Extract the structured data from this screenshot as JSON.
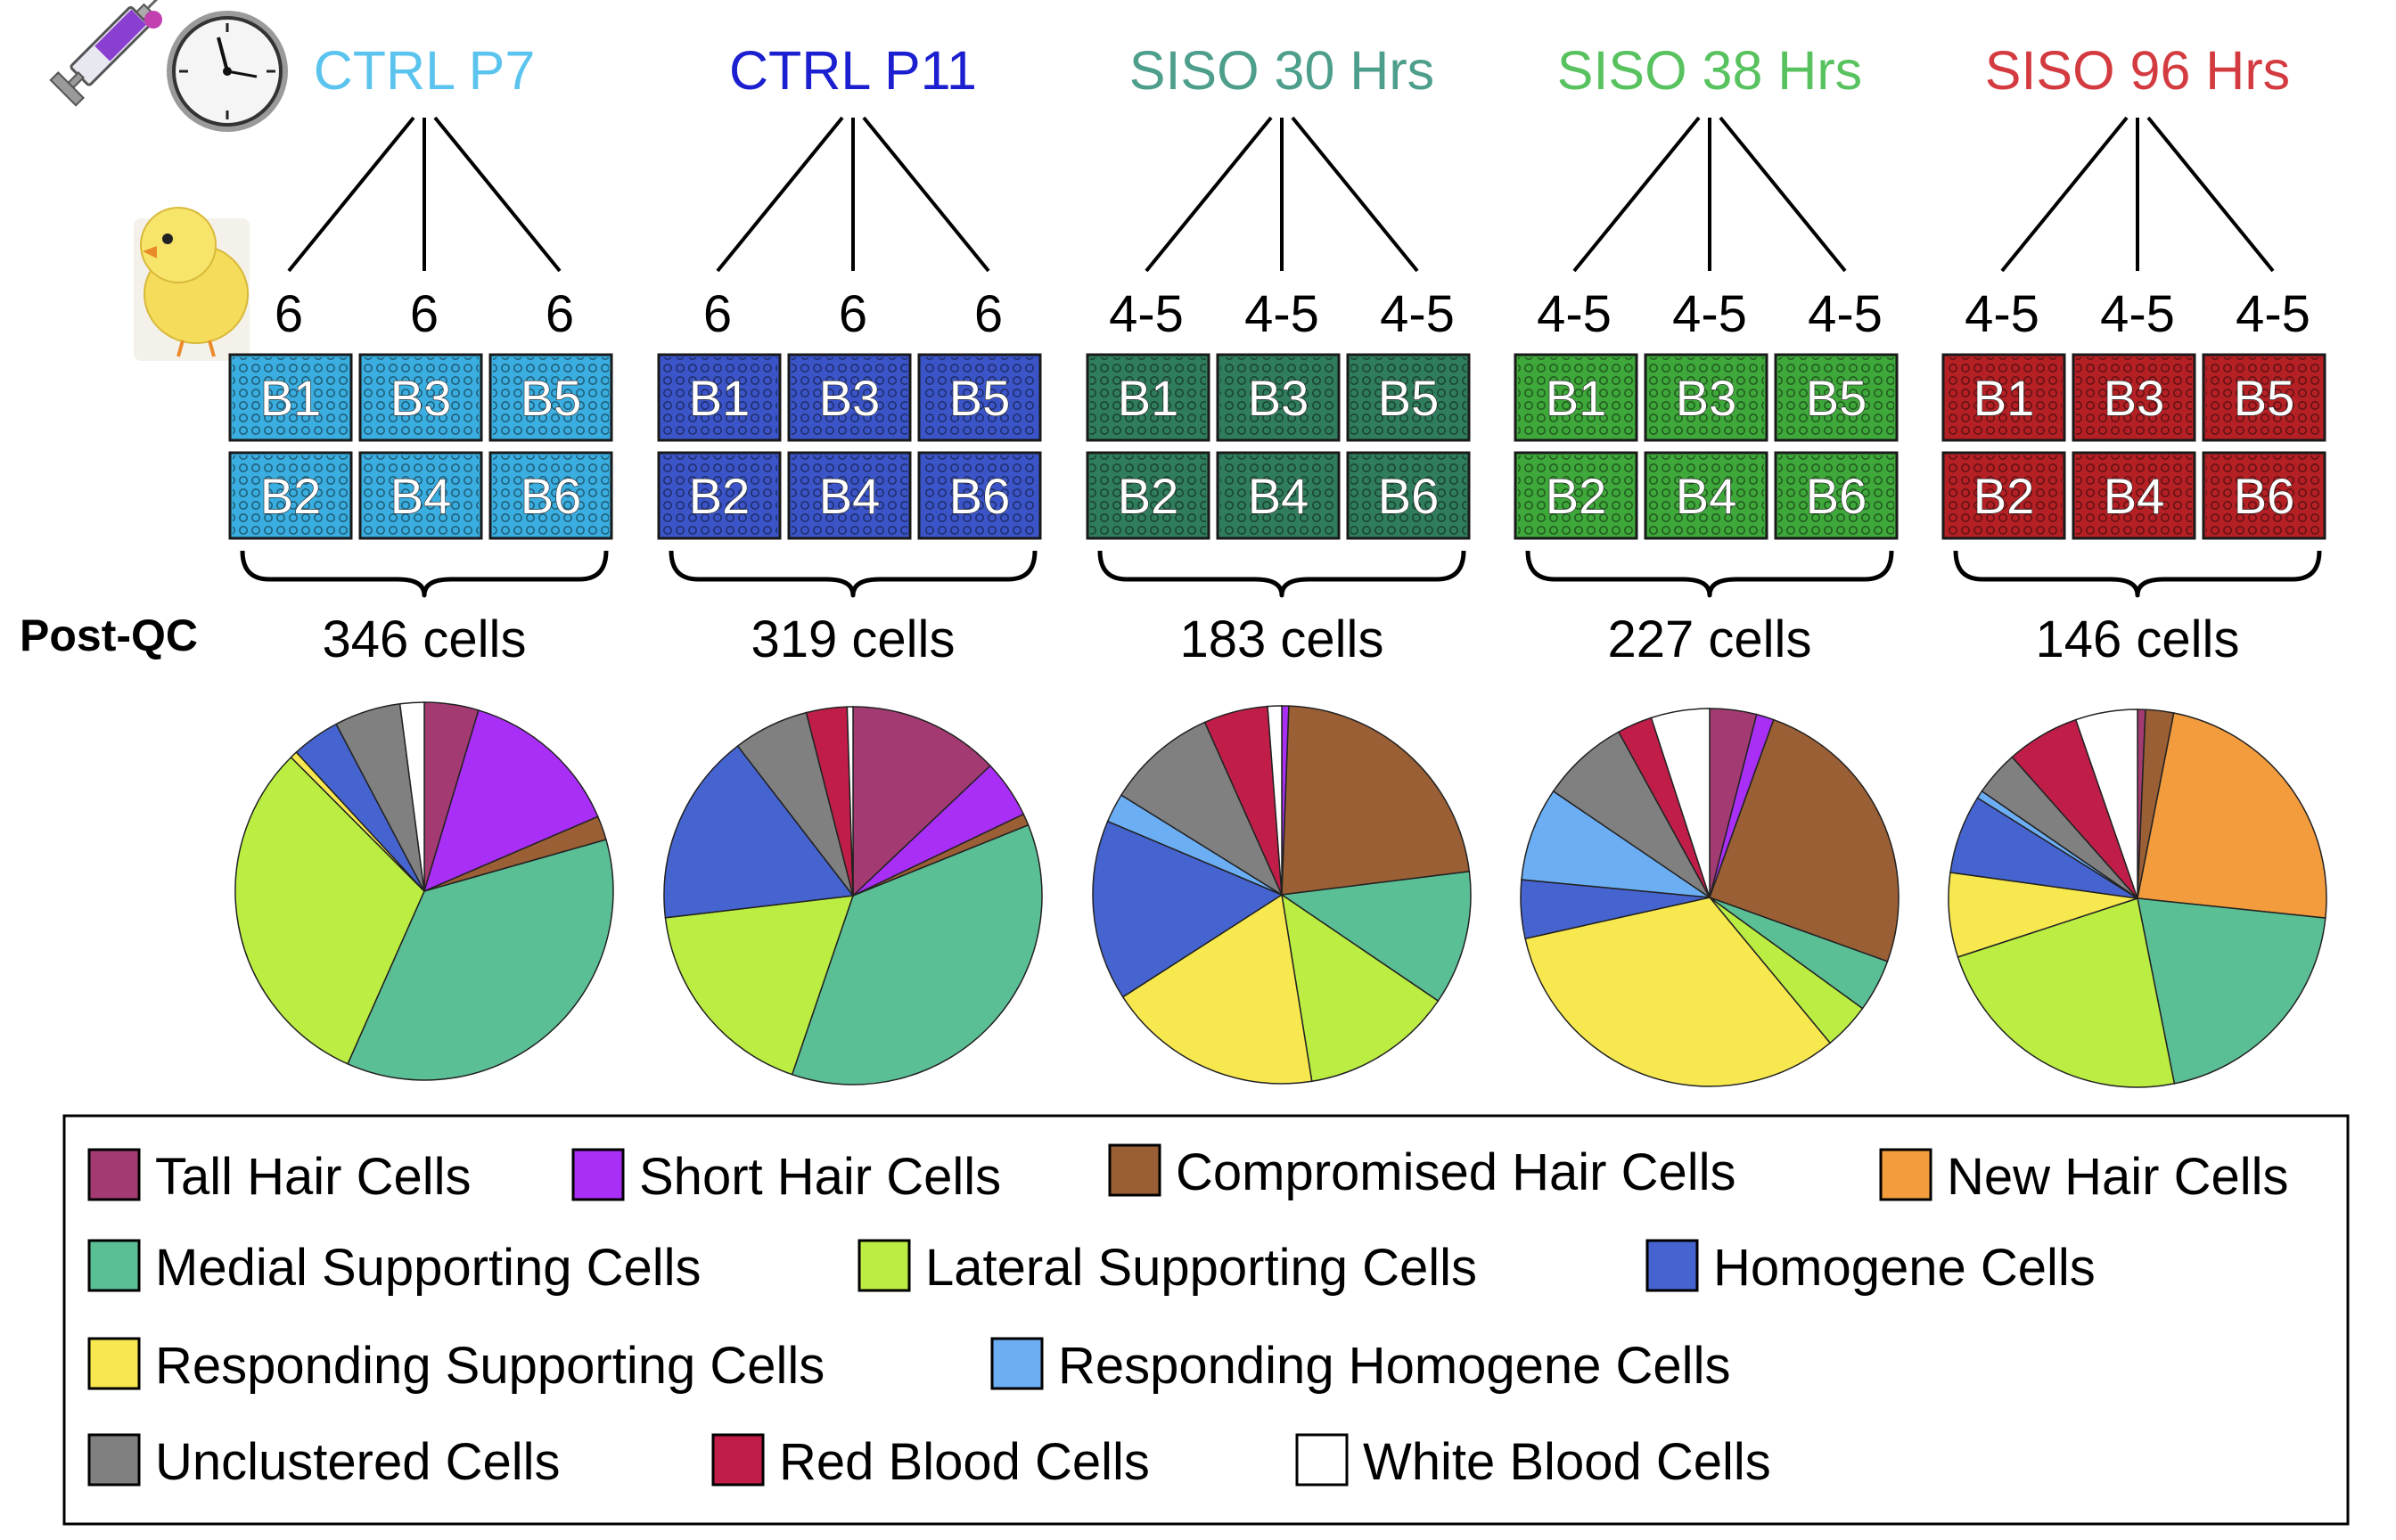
{
  "postqc_label": "Post-QC",
  "groups": [
    {
      "title": "CTRL P7",
      "color": "#5bc4ee",
      "batch_fill": "#3aaee0",
      "replicate_counts": [
        "6",
        "6",
        "6"
      ],
      "batches": [
        "B1",
        "B3",
        "B5",
        "B2",
        "B4",
        "B6"
      ],
      "cells_label": "346 cells"
    },
    {
      "title": "CTRL P11",
      "color": "#1b1fcf",
      "batch_fill": "#3b55c9",
      "replicate_counts": [
        "6",
        "6",
        "6"
      ],
      "batches": [
        "B1",
        "B3",
        "B5",
        "B2",
        "B4",
        "B6"
      ],
      "cells_label": "319 cells"
    },
    {
      "title": "SISO 30 Hrs",
      "color": "#4e9e8c",
      "batch_fill": "#2f7d5c",
      "replicate_counts": [
        "4-5",
        "4-5",
        "4-5"
      ],
      "batches": [
        "B1",
        "B3",
        "B5",
        "B2",
        "B4",
        "B6"
      ],
      "cells_label": "183 cells"
    },
    {
      "title": "SISO 38 Hrs",
      "color": "#58c25f",
      "batch_fill": "#3ea83a",
      "replicate_counts": [
        "4-5",
        "4-5",
        "4-5"
      ],
      "batches": [
        "B1",
        "B3",
        "B5",
        "B2",
        "B4",
        "B6"
      ],
      "cells_label": "227 cells"
    },
    {
      "title": "SISO 96 Hrs",
      "color": "#d33b40",
      "batch_fill": "#b52025",
      "replicate_counts": [
        "4-5",
        "4-5",
        "4-5"
      ],
      "batches": [
        "B1",
        "B3",
        "B5",
        "B2",
        "B4",
        "B6"
      ],
      "cells_label": "146 cells"
    }
  ],
  "chart_data": [
    {
      "type": "pie",
      "group": "CTRL P7",
      "slices": [
        {
          "label": "Tall Hair Cells",
          "value": 4.5
        },
        {
          "label": "Short Hair Cells",
          "value": 13.5
        },
        {
          "label": "Compromised Hair Cells",
          "value": 2.0
        },
        {
          "label": "Medial Supporting Cells",
          "value": 35.0
        },
        {
          "label": "Lateral Supporting Cells",
          "value": 30.0
        },
        {
          "label": "Responding Supporting Cells",
          "value": 0.6
        },
        {
          "label": "Homogene Cells",
          "value": 4.0
        },
        {
          "label": "Unclustered Cells",
          "value": 5.5
        },
        {
          "label": "White Blood Cells",
          "value": 2.0
        }
      ]
    },
    {
      "type": "pie",
      "group": "CTRL P11",
      "slices": [
        {
          "label": "Tall Hair Cells",
          "value": 13.0
        },
        {
          "label": "Short Hair Cells",
          "value": 5.0
        },
        {
          "label": "Compromised Hair Cells",
          "value": 1.0
        },
        {
          "label": "Medial Supporting Cells",
          "value": 36.5
        },
        {
          "label": "Lateral Supporting Cells",
          "value": 18.0
        },
        {
          "label": "Homogene Cells",
          "value": 16.5
        },
        {
          "label": "Unclustered Cells",
          "value": 6.5
        },
        {
          "label": "Red Blood Cells",
          "value": 3.5
        },
        {
          "label": "White Blood Cells",
          "value": 0.5
        }
      ]
    },
    {
      "type": "pie",
      "group": "SISO 30 Hrs",
      "slices": [
        {
          "label": "Short Hair Cells",
          "value": 0.6
        },
        {
          "label": "Compromised Hair Cells",
          "value": 22.5
        },
        {
          "label": "Medial Supporting Cells",
          "value": 11.5
        },
        {
          "label": "Lateral Supporting Cells",
          "value": 13.0
        },
        {
          "label": "Responding Supporting Cells",
          "value": 18.5
        },
        {
          "label": "Homogene Cells",
          "value": 15.5
        },
        {
          "label": "Responding Homogene Cells",
          "value": 2.5
        },
        {
          "label": "Unclustered Cells",
          "value": 9.5
        },
        {
          "label": "Red Blood Cells",
          "value": 5.5
        },
        {
          "label": "White Blood Cells",
          "value": 1.2
        }
      ]
    },
    {
      "type": "pie",
      "group": "SISO 38 Hrs",
      "slices": [
        {
          "label": "Tall Hair Cells",
          "value": 4.0
        },
        {
          "label": "Short Hair Cells",
          "value": 1.5
        },
        {
          "label": "Compromised Hair Cells",
          "value": 25.0
        },
        {
          "label": "Medial Supporting Cells",
          "value": 4.5
        },
        {
          "label": "Lateral Supporting Cells",
          "value": 4.0
        },
        {
          "label": "Responding Supporting Cells",
          "value": 32.5
        },
        {
          "label": "Homogene Cells",
          "value": 5.0
        },
        {
          "label": "Responding Homogene Cells",
          "value": 8.0
        },
        {
          "label": "Unclustered Cells",
          "value": 7.5
        },
        {
          "label": "Red Blood Cells",
          "value": 3.0
        },
        {
          "label": "White Blood Cells",
          "value": 5.0
        }
      ]
    },
    {
      "type": "pie",
      "group": "SISO 96 Hrs",
      "slices": [
        {
          "label": "Tall Hair Cells",
          "value": 0.7
        },
        {
          "label": "Compromised Hair Cells",
          "value": 2.5
        },
        {
          "label": "New Hair Cells",
          "value": 24.5
        },
        {
          "label": "Medial Supporting Cells",
          "value": 21.0
        },
        {
          "label": "Lateral Supporting Cells",
          "value": 24.0
        },
        {
          "label": "Responding Supporting Cells",
          "value": 7.5
        },
        {
          "label": "Homogene Cells",
          "value": 7.0
        },
        {
          "label": "Responding Homogene Cells",
          "value": 0.7
        },
        {
          "label": "Unclustered Cells",
          "value": 4.0
        },
        {
          "label": "Red Blood Cells",
          "value": 6.5
        },
        {
          "label": "White Blood Cells",
          "value": 5.5
        }
      ]
    }
  ],
  "legend": [
    {
      "label": "Tall Hair Cells",
      "color": "#a33b72"
    },
    {
      "label": "Short Hair Cells",
      "color": "#a92ef6"
    },
    {
      "label": "Compromised Hair Cells",
      "color": "#9a5f35"
    },
    {
      "label": "New Hair Cells",
      "color": "#f29c3e"
    },
    {
      "label": "Medial Supporting Cells",
      "color": "#5bbf96"
    },
    {
      "label": "Lateral Supporting Cells",
      "color": "#bbed43"
    },
    {
      "label": "Homogene Cells",
      "color": "#4664d0"
    },
    {
      "label": "Responding Supporting Cells",
      "color": "#f8e850"
    },
    {
      "label": "Responding Homogene Cells",
      "color": "#6caef4"
    },
    {
      "label": "Unclustered Cells",
      "color": "#808080"
    },
    {
      "label": "Red Blood Cells",
      "color": "#c01e49"
    },
    {
      "label": "White Blood Cells",
      "color": "#ffffff"
    }
  ],
  "icons": [
    "syringe-icon",
    "clock-icon",
    "chick-icon"
  ]
}
